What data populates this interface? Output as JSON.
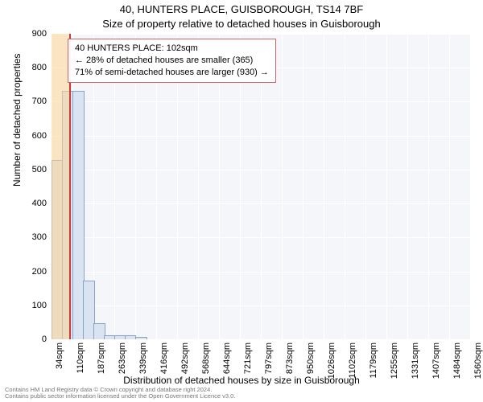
{
  "title_line1": "40, HUNTERS PLACE, GUISBOROUGH, TS14 7BF",
  "title_line2": "Size of property relative to detached houses in Guisborough",
  "ylabel": "Number of detached properties",
  "xlabel": "Distribution of detached houses by size in Guisborough",
  "chart": {
    "type": "histogram",
    "background_color": "#f4f6fa",
    "grid_color": "#ffffff",
    "bar_fill": "#d9e3f2",
    "bar_stroke": "#8aa4c8",
    "overlay_smaller_fill": "rgba(255,214,148,0.55)",
    "overlay_larger_fill": "rgba(180,180,180,0.0)",
    "marker_color": "#cc3a3a",
    "x_domain": [
      34,
      1560
    ],
    "x_ticks": [
      34,
      110,
      187,
      263,
      339,
      416,
      492,
      568,
      644,
      721,
      797,
      873,
      950,
      1026,
      1102,
      1179,
      1255,
      1331,
      1407,
      1484,
      1560
    ],
    "x_tick_suffix": "sqm",
    "y_domain": [
      0,
      900
    ],
    "y_ticks": [
      0,
      100,
      200,
      300,
      400,
      500,
      600,
      700,
      800,
      900
    ],
    "bin_edges": [
      34,
      72,
      110,
      149,
      187,
      225,
      263,
      301,
      339,
      378,
      416,
      454,
      492,
      530,
      568,
      606,
      644,
      683,
      721,
      759,
      797,
      835,
      873,
      912,
      950,
      988,
      1026,
      1064,
      1102,
      1141,
      1179,
      1217,
      1255,
      1293,
      1331,
      1370,
      1408,
      1446,
      1484,
      1522,
      1560
    ],
    "bin_values": [
      525,
      730,
      730,
      170,
      45,
      10,
      10,
      10,
      5,
      0,
      0,
      0,
      0,
      0,
      0,
      0,
      0,
      0,
      0,
      0,
      0,
      0,
      0,
      0,
      0,
      0,
      0,
      0,
      0,
      0,
      0,
      0,
      0,
      0,
      0,
      0,
      0,
      0,
      0,
      0
    ],
    "marker_x": 102,
    "info_box": {
      "line1": "40 HUNTERS PLACE: 102sqm",
      "line2": "← 28% of detached houses are smaller (365)",
      "line3": "71% of semi-detached houses are larger (930) →",
      "border_color": "#c86666",
      "fontsize": 11
    },
    "axis_fontsize": 11,
    "label_fontsize": 12,
    "title_fontsize": 13
  },
  "footer": {
    "line1": "Contains HM Land Registry data © Crown copyright and database right 2024.",
    "line2": "Contains public sector information licensed under the Open Government Licence v3.0."
  }
}
